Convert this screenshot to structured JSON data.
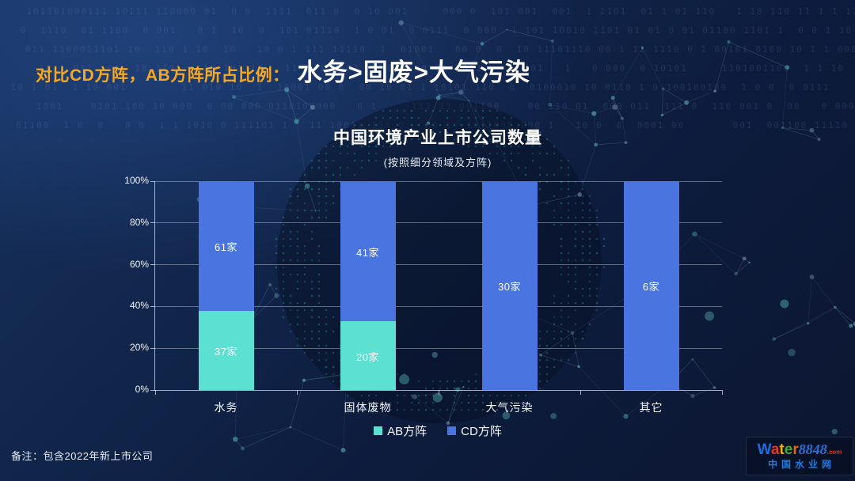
{
  "header": {
    "prefix": "对比CD方阵，AB方阵所占比例：",
    "title": "水务>固废>大气污染"
  },
  "chart_data": {
    "type": "bar",
    "stacked": true,
    "normalized": "percent",
    "title": "中国环境产业上市公司数量",
    "subtitle": "(按照细分领域及方阵)",
    "categories": [
      "水务",
      "固体废物",
      "大气污染",
      "其它"
    ],
    "series": [
      {
        "name": "AB方阵",
        "color": "#5CE0D2",
        "values": [
          37,
          20,
          0,
          0
        ],
        "labels": [
          "37家",
          "20家",
          "",
          ""
        ]
      },
      {
        "name": "CD方阵",
        "color": "#4A74E0",
        "values": [
          61,
          41,
          30,
          6
        ],
        "labels": [
          "61家",
          "41家",
          "30家",
          "6家"
        ]
      }
    ],
    "y_axis": {
      "ticks": [
        "0%",
        "20%",
        "40%",
        "60%",
        "80%",
        "100%"
      ],
      "min": 0,
      "max": 100,
      "unit": "percent"
    },
    "grid": true,
    "legend_position": "bottom"
  },
  "footnote": "备注：包含2022年新上市公司",
  "logo": {
    "brand_letters": [
      {
        "char": "W",
        "color": "#1c6cdb"
      },
      {
        "char": "a",
        "color": "#e03a2a"
      },
      {
        "char": "t",
        "color": "#f2b200"
      },
      {
        "char": "e",
        "color": "#46a53c"
      },
      {
        "char": "r",
        "color": "#e8650d"
      }
    ],
    "brand_number": "8848",
    "brand_tld": ".com",
    "subtitle": "中国水业网"
  },
  "colors": {
    "accent_orange": "#F6A81F",
    "ab_series": "#5CE0D2",
    "cd_series": "#4A74E0",
    "background_top": "#17335f",
    "background_bottom": "#0c1631"
  }
}
